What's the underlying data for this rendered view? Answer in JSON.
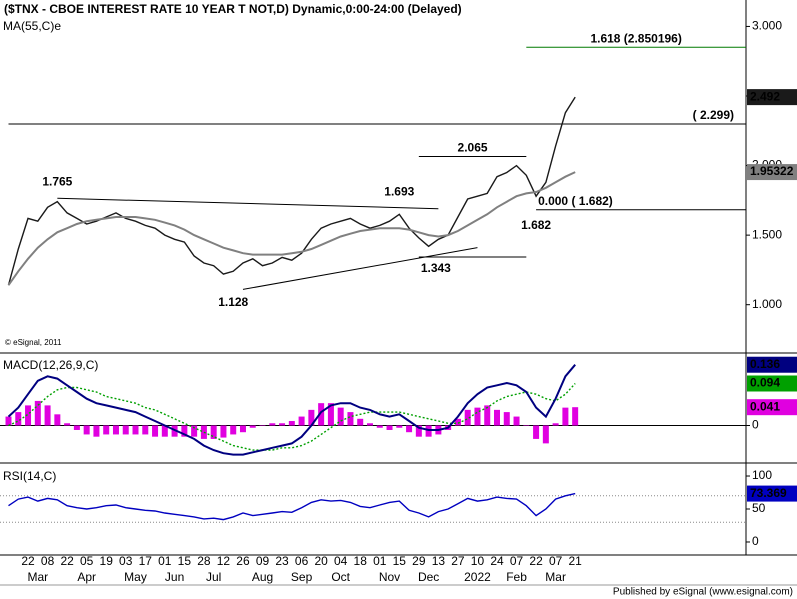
{
  "chart_data": [
    {
      "type": "line",
      "title": "($TNX - CBOE INTEREST RATE 10 YEAR T NOT,D) Dynamic,0:00-24:00 (Delayed)",
      "credit": "© eSignal, 2011",
      "categories": [
        null,
        null,
        "22",
        null,
        "08",
        null,
        "22",
        null,
        "05",
        null,
        "19",
        null,
        "03",
        null,
        "17",
        null,
        "01",
        null,
        "15",
        null,
        "28",
        null,
        "12",
        null,
        "26",
        null,
        "09",
        null,
        "23",
        null,
        "06",
        null,
        "20",
        null,
        "04",
        null,
        "18",
        null,
        "01",
        null,
        "15",
        null,
        "29",
        null,
        "13",
        null,
        "27",
        null,
        "10",
        null,
        "24",
        null,
        "07",
        null,
        "22",
        null,
        "07",
        null,
        "21"
      ],
      "month_labels": [
        null,
        null,
        null,
        "Mar",
        null,
        null,
        null,
        null,
        "Apr",
        null,
        null,
        null,
        null,
        "May",
        null,
        null,
        null,
        "Jun",
        null,
        null,
        null,
        "Jul",
        null,
        null,
        null,
        null,
        "Aug",
        null,
        null,
        null,
        "Sep",
        null,
        null,
        null,
        "Oct",
        null,
        null,
        null,
        null,
        "Nov",
        null,
        null,
        null,
        "Dec",
        null,
        null,
        null,
        null,
        "2022",
        null,
        null,
        null,
        "Feb",
        null,
        null,
        null,
        "Mar",
        null,
        null
      ],
      "series": [
        {
          "color": "#1a1a1a",
          "style": "solid",
          "box": true,
          "values": [
            1.14,
            1.4,
            1.62,
            1.6,
            1.7,
            1.74,
            1.66,
            1.62,
            1.58,
            1.6,
            1.63,
            1.66,
            1.62,
            1.6,
            1.57,
            1.55,
            1.5,
            1.47,
            1.45,
            1.35,
            1.3,
            1.28,
            1.22,
            1.24,
            1.3,
            1.33,
            1.28,
            1.3,
            1.34,
            1.32,
            1.37,
            1.47,
            1.55,
            1.58,
            1.6,
            1.62,
            1.58,
            1.55,
            1.57,
            1.6,
            1.65,
            1.55,
            1.48,
            1.42,
            1.47,
            1.5,
            1.63,
            1.76,
            1.78,
            1.8,
            1.92,
            1.95,
            2.0,
            1.93,
            1.78,
            1.88,
            2.14,
            2.38,
            2.492
          ]
        },
        {
          "name": "MA(55,C)e",
          "color": "#808080",
          "style": "thick",
          "box": true,
          "values": [
            1.14,
            1.24,
            1.33,
            1.41,
            1.47,
            1.52,
            1.55,
            1.58,
            1.6,
            1.61,
            1.62,
            1.63,
            1.63,
            1.63,
            1.62,
            1.61,
            1.59,
            1.57,
            1.54,
            1.5,
            1.47,
            1.44,
            1.41,
            1.39,
            1.37,
            1.36,
            1.36,
            1.36,
            1.36,
            1.37,
            1.38,
            1.4,
            1.43,
            1.46,
            1.49,
            1.51,
            1.53,
            1.54,
            1.55,
            1.55,
            1.55,
            1.54,
            1.52,
            1.5,
            1.49,
            1.5,
            1.53,
            1.57,
            1.61,
            1.65,
            1.7,
            1.74,
            1.78,
            1.8,
            1.81,
            1.84,
            1.88,
            1.92,
            1.95322
          ]
        }
      ],
      "ylim": [
        0.66,
        3.19
      ],
      "yticks": [
        {
          "value": 1,
          "label": "1.000"
        },
        {
          "value": 1.5,
          "label": "1.500"
        },
        {
          "value": 2,
          "label": "2.000"
        },
        {
          "value": 2.5,
          "label": "2.500"
        },
        {
          "value": 3,
          "label": "3.000"
        }
      ],
      "levels": [
        {
          "label": "1.618 (2.850196)",
          "value": 2.850196,
          "from": 53,
          "color": "#007a00",
          "label_at": "middle",
          "side": "above"
        },
        {
          "label": "( 2.299)",
          "value": 2.299,
          "from": 0,
          "color": "#000000",
          "label_at": "end",
          "side": "above"
        },
        {
          "label": "2.065",
          "value": 2.065,
          "from": 42,
          "to": 53,
          "color": "#000000",
          "label_at": "middle",
          "side": "above"
        },
        {
          "label": "0.000 ( 1.682)",
          "value": 1.682,
          "from": 54,
          "color": "#000000",
          "label_at": "start",
          "side": "above"
        },
        {
          "label": "1.343",
          "value": 1.343,
          "from": 42,
          "to": 53,
          "color": "#000000",
          "label_at": "start",
          "side": "below"
        }
      ],
      "trendlines": [
        {
          "x": [
            5,
            44
          ],
          "values": [
            1.765,
            1.69
          ]
        },
        {
          "x": [
            24,
            48
          ],
          "values": [
            1.11,
            1.41
          ]
        }
      ],
      "point_labels": [
        {
          "x": 5,
          "value": 1.765,
          "side": "above"
        },
        {
          "x": 40,
          "value": 1.693,
          "side": "above"
        },
        {
          "x": 23,
          "value": 1.128,
          "side": "below"
        },
        {
          "x": 54,
          "value": 1.682,
          "side": "below"
        }
      ]
    },
    {
      "type": "line",
      "title": "MACD(12,26,9,C)",
      "title_color": "#000080",
      "series": [
        {
          "color": "#e000e0",
          "style": "bars",
          "box": true,
          "values": [
            0.02,
            0.03,
            0.045,
            0.055,
            0.045,
            0.025,
            0.005,
            -0.01,
            -0.02,
            -0.025,
            -0.02,
            -0.02,
            -0.02,
            -0.02,
            -0.02,
            -0.025,
            -0.025,
            -0.025,
            -0.025,
            -0.025,
            -0.03,
            -0.03,
            -0.027,
            -0.02,
            -0.015,
            -0.005,
            0,
            0.005,
            0.005,
            0.01,
            0.02,
            0.035,
            0.05,
            0.05,
            0.04,
            0.03,
            0.015,
            0.005,
            -0.005,
            -0.01,
            -0.005,
            -0.015,
            -0.025,
            -0.025,
            -0.02,
            -0.01,
            0.015,
            0.035,
            0.04,
            0.045,
            0.035,
            0.03,
            0.02,
            0,
            -0.03,
            -0.04,
            0.005,
            0.04,
            0.041
          ]
        },
        {
          "color": "#00a000",
          "style": "dotted",
          "box": true,
          "values": [
            0,
            0.01,
            0.025,
            0.045,
            0.065,
            0.08,
            0.085,
            0.085,
            0.08,
            0.075,
            0.065,
            0.06,
            0.055,
            0.05,
            0.04,
            0.035,
            0.025,
            0.015,
            0.005,
            -0.005,
            -0.015,
            -0.025,
            -0.035,
            -0.045,
            -0.05,
            -0.055,
            -0.055,
            -0.055,
            -0.05,
            -0.05,
            -0.045,
            -0.035,
            -0.02,
            -0.005,
            0.01,
            0.02,
            0.025,
            0.03,
            0.03,
            0.03,
            0.03,
            0.025,
            0.02,
            0.015,
            0.01,
            0.005,
            0.005,
            0.015,
            0.03,
            0.04,
            0.055,
            0.065,
            0.07,
            0.075,
            0.07,
            0.06,
            0.055,
            0.07,
            0.094
          ]
        },
        {
          "color": "#000080",
          "style": "thick",
          "box": true,
          "values": [
            0.02,
            0.04,
            0.07,
            0.1,
            0.11,
            0.105,
            0.09,
            0.075,
            0.06,
            0.05,
            0.045,
            0.04,
            0.035,
            0.03,
            0.02,
            0.01,
            0,
            -0.01,
            -0.02,
            -0.03,
            -0.045,
            -0.055,
            -0.062,
            -0.065,
            -0.065,
            -0.06,
            -0.055,
            -0.05,
            -0.045,
            -0.04,
            -0.025,
            0,
            0.03,
            0.045,
            0.05,
            0.05,
            0.04,
            0.035,
            0.025,
            0.02,
            0.025,
            0.01,
            -0.005,
            -0.01,
            -0.01,
            -0.005,
            0.02,
            0.05,
            0.07,
            0.085,
            0.09,
            0.095,
            0.09,
            0.075,
            0.04,
            0.02,
            0.06,
            0.11,
            0.136
          ]
        }
      ],
      "ylim": [
        -0.066,
        0.16
      ],
      "yticks": [
        0
      ],
      "zero_line": true
    },
    {
      "type": "line",
      "title": "RSI(14,C)",
      "title_color": "#000080",
      "series": [
        {
          "color": "#0000c0",
          "style": "solid",
          "box": true,
          "values": [
            55,
            65,
            68,
            62,
            66,
            64,
            55,
            52,
            50,
            52,
            55,
            56,
            52,
            50,
            48,
            47,
            44,
            42,
            40,
            38,
            35,
            36,
            34,
            38,
            44,
            40,
            42,
            44,
            46,
            45,
            52,
            60,
            64,
            62,
            63,
            60,
            54,
            52,
            56,
            60,
            62,
            48,
            44,
            38,
            46,
            50,
            58,
            66,
            62,
            64,
            68,
            66,
            65,
            55,
            40,
            50,
            65,
            70,
            73.369
          ]
        }
      ],
      "ylim": [
        -16.7,
        116.7
      ],
      "yticks": [
        0,
        50,
        100
      ],
      "guides": [
        30,
        70
      ]
    }
  ],
  "footer": "Published by eSignal (www.esignal.com)"
}
